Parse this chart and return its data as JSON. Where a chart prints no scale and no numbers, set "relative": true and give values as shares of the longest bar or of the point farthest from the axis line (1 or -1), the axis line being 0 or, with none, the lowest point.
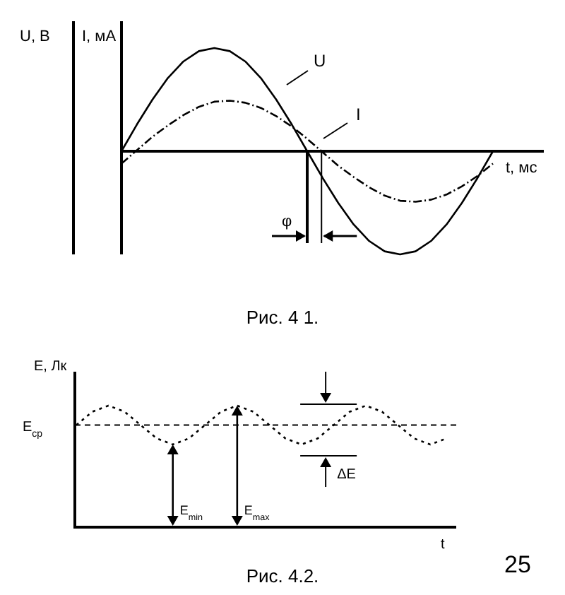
{
  "chart_data": [
    {
      "type": "line",
      "relative": true,
      "title": "Рис. 4 1.",
      "xlabel": "t, мс",
      "ylabel": "U, В",
      "y2label": "I, мА",
      "annotations": [
        "φ"
      ],
      "categories": [
        null,
        null,
        null,
        null,
        null,
        null,
        null,
        null,
        null,
        null,
        null,
        null,
        null,
        null,
        null,
        null,
        null,
        null,
        null,
        null,
        null,
        null,
        null,
        null,
        null
      ],
      "series": [
        {
          "name": "U",
          "color": "#000000",
          "line_style": "solid",
          "values": [
            0,
            0.26,
            0.5,
            0.71,
            0.87,
            0.97,
            1,
            0.97,
            0.87,
            0.71,
            0.5,
            0.26,
            0,
            -0.26,
            -0.5,
            -0.71,
            -0.87,
            -0.97,
            -1,
            -0.97,
            -0.87,
            -0.71,
            -0.5,
            -0.26,
            0
          ]
        },
        {
          "name": "I",
          "color": "#000000",
          "line_style": "dashed",
          "values": [
            -0.12,
            0.01,
            0.14,
            0.25,
            0.35,
            0.43,
            0.48,
            0.49,
            0.47,
            0.42,
            0.34,
            0.24,
            0.12,
            -0.01,
            -0.14,
            -0.25,
            -0.35,
            -0.43,
            -0.48,
            -0.49,
            -0.47,
            -0.42,
            -0.34,
            -0.24,
            -0.12
          ]
        }
      ]
    },
    {
      "type": "line",
      "relative": true,
      "title": "Рис. 4.2.",
      "xlabel": "t",
      "ylabel": "E, Лк",
      "categories": [
        null,
        null,
        null,
        null,
        null,
        null,
        null,
        null,
        null,
        null,
        null,
        null,
        null,
        null,
        null,
        null,
        null,
        null,
        null,
        null,
        null,
        null,
        null,
        null
      ],
      "series": [
        {
          "color": "#000000",
          "line_style": "dotted",
          "values": [
            0.84,
            0.95,
            1,
            0.95,
            0.84,
            0.73,
            0.68,
            0.73,
            0.84,
            0.95,
            1,
            0.95,
            0.84,
            0.73,
            0.68,
            0.73,
            0.84,
            0.95,
            1,
            0.95,
            0.84,
            0.73,
            0.68,
            0.73
          ]
        }
      ],
      "ref_lines": [
        {
          "axis": "y",
          "value": 0.84,
          "label": "E$_{ср}$",
          "line_style": "dashed",
          "color": "#000000"
        }
      ],
      "annotations": [
        "E$_{min}$",
        "E$_{max}$",
        "ΔE",
        "25"
      ]
    }
  ]
}
